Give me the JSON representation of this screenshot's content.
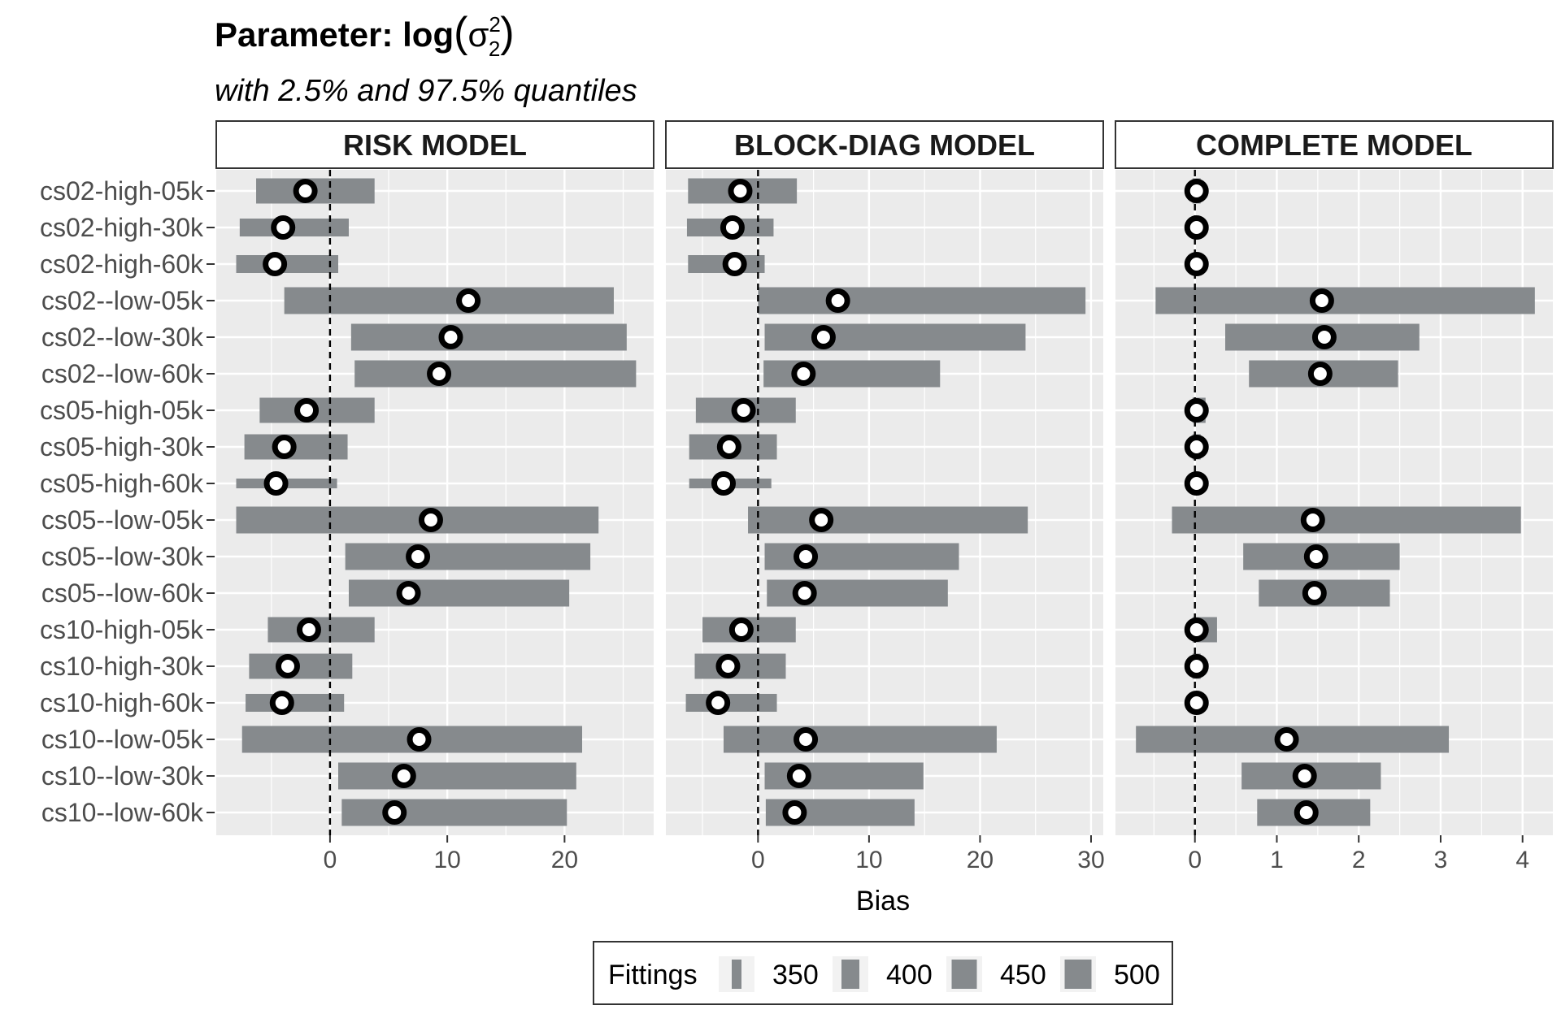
{
  "chart_data": {
    "type": "bar",
    "title_main": "Parameter: log",
    "title_symbol": "σ",
    "title_sup": "2",
    "title_sub": "2",
    "subtitle": "with 2.5% and 97.5% quantiles",
    "xlabel": "Bias",
    "categories": [
      "cs02-high-05k",
      "cs02-high-30k",
      "cs02-high-60k",
      "cs02--low-05k",
      "cs02--low-30k",
      "cs02--low-60k",
      "cs05-high-05k",
      "cs05-high-30k",
      "cs05-high-60k",
      "cs05--low-05k",
      "cs05--low-30k",
      "cs05--low-60k",
      "cs10-high-05k",
      "cs10-high-30k",
      "cs10-high-60k",
      "cs10--low-05k",
      "cs10--low-30k",
      "cs10--low-60k"
    ],
    "fittings": [
      450,
      400,
      400,
      500,
      500,
      500,
      450,
      450,
      350,
      500,
      500,
      500,
      450,
      450,
      400,
      500,
      500,
      500
    ],
    "reference_line": 0,
    "grid": true,
    "panels": [
      {
        "name": "RISK MODEL",
        "xlim": [
          -9.7,
          27.6
        ],
        "xticks": [
          0,
          10,
          20
        ],
        "estimate": [
          -2.1,
          -4.0,
          -4.7,
          11.8,
          10.3,
          9.3,
          -2.0,
          -3.9,
          -4.6,
          8.6,
          7.5,
          6.7,
          -1.8,
          -3.6,
          -4.1,
          7.6,
          6.3,
          5.5
        ],
        "lower": [
          -6.3,
          -7.7,
          -8.0,
          -3.9,
          1.8,
          2.1,
          -6.0,
          -7.3,
          -8.0,
          -8.0,
          1.3,
          1.6,
          -5.3,
          -6.9,
          -7.2,
          -7.5,
          0.7,
          1.0
        ],
        "upper": [
          3.8,
          1.6,
          0.7,
          24.2,
          25.3,
          26.1,
          3.8,
          1.5,
          0.6,
          22.9,
          22.2,
          20.4,
          3.8,
          1.9,
          1.2,
          21.5,
          21.0,
          20.2
        ]
      },
      {
        "name": "BLOCK-DIAG MODEL",
        "xlim": [
          -8.3,
          31.1
        ],
        "xticks": [
          0,
          10,
          20,
          30
        ],
        "estimate": [
          -1.6,
          -2.3,
          -2.1,
          7.2,
          5.9,
          4.1,
          -1.3,
          -2.6,
          -3.1,
          5.7,
          4.3,
          4.2,
          -1.5,
          -2.7,
          -3.6,
          4.3,
          3.7,
          3.3
        ],
        "lower": [
          -6.3,
          -6.4,
          -6.3,
          0.0,
          0.6,
          0.5,
          -5.6,
          -6.2,
          -6.2,
          -0.9,
          0.6,
          0.8,
          -5.0,
          -5.7,
          -6.5,
          -3.1,
          0.6,
          0.7
        ],
        "upper": [
          3.5,
          1.4,
          0.6,
          29.5,
          24.1,
          16.4,
          3.4,
          1.7,
          1.2,
          24.3,
          18.1,
          17.1,
          3.4,
          2.5,
          1.7,
          21.5,
          14.9,
          14.1
        ]
      },
      {
        "name": "COMPLETE MODEL",
        "xlim": [
          -0.97,
          4.37
        ],
        "xticks": [
          0,
          1,
          2,
          3,
          4
        ],
        "estimate": [
          0.02,
          0.02,
          0.02,
          1.55,
          1.58,
          1.53,
          0.02,
          0.02,
          0.02,
          1.44,
          1.48,
          1.46,
          0.02,
          0.02,
          0.02,
          1.12,
          1.34,
          1.36
        ],
        "lower": [
          -0.03,
          -0.03,
          -0.03,
          -0.48,
          0.37,
          0.66,
          -0.03,
          -0.03,
          -0.03,
          -0.28,
          0.59,
          0.78,
          -0.03,
          -0.03,
          -0.03,
          -0.72,
          0.57,
          0.76
        ],
        "upper": [
          0.07,
          0.07,
          0.07,
          4.15,
          2.74,
          2.48,
          0.13,
          0.07,
          0.07,
          3.98,
          2.5,
          2.38,
          0.27,
          0.07,
          0.07,
          3.1,
          2.27,
          2.14
        ]
      }
    ],
    "legend": {
      "title": "Fittings",
      "position": "bottom",
      "items": [
        "350",
        "400",
        "450",
        "500"
      ]
    },
    "colors": {
      "panel_bg": "#ebebeb",
      "grid": "#ffffff",
      "bar": "#868a8d",
      "point_fill": "#ffffff",
      "point_stroke": "#000000"
    }
  }
}
